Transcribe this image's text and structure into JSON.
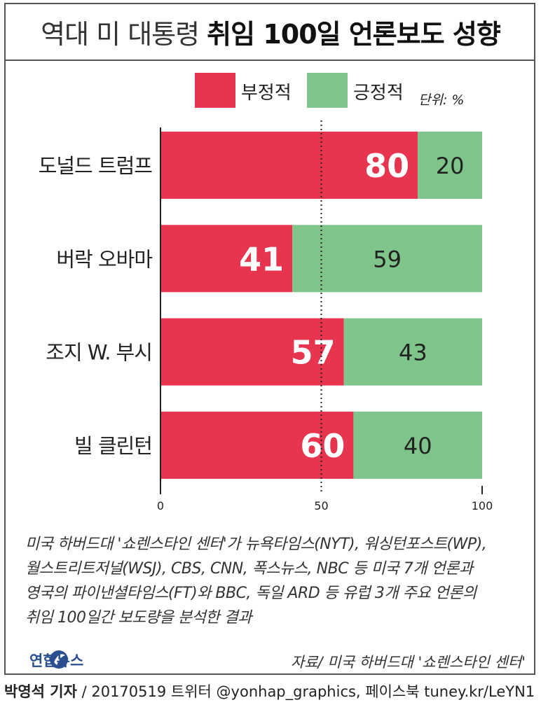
{
  "title": {
    "light": "역대 미 대통령",
    "bold": "취임 100일 언론보도 성향"
  },
  "legend": {
    "negative": "부정적",
    "positive": "긍정적",
    "unit": "단위: %"
  },
  "colors": {
    "negative": "#e8354f",
    "positive": "#7fc48a",
    "axis": "#222222"
  },
  "chart_data": {
    "type": "bar",
    "orientation": "horizontal",
    "stacked": true,
    "categories": [
      "도널드 트럼프",
      "버락 오바마",
      "조지 W. 부시",
      "빌 클린턴"
    ],
    "series": [
      {
        "name": "부정적",
        "values": [
          80,
          41,
          57,
          60
        ]
      },
      {
        "name": "긍정적",
        "values": [
          20,
          59,
          43,
          40
        ]
      }
    ],
    "xlim": [
      0,
      100
    ],
    "x_ticks": [
      "0",
      "50",
      "100"
    ],
    "reference_line": 50,
    "ylabel": "",
    "xlabel": ""
  },
  "note": [
    "미국 하버드대 '쇼렌스타인 센터'가 뉴욕타임스(NYT), 워싱턴포스트(WP),",
    "월스트리트저널(WSJ), CBS, CNN, 폭스뉴스, NBC 등 미국 7개 언론과",
    "영국의 파이낸셜타임스(FT)와 BBC, 독일 ARD 등 유럽 3개 주요 언론의",
    "취임 100일간 보도량을 분석한 결과"
  ],
  "logo": "연합뉴스",
  "source": "자료/ 미국 하버드대 '쇼렌스타인 센터'",
  "footer": {
    "author": "박영석 기자",
    "rest": " / 20170519   트위터 @yonhap_graphics, 페이스북 tuney.kr/LeYN1"
  }
}
